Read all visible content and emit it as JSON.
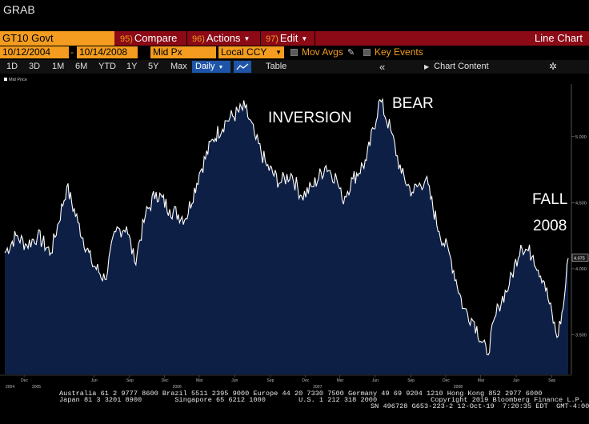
{
  "window": {
    "title": "GRAB"
  },
  "toolbar": {
    "ticker": "GT10 Govt",
    "menus": [
      {
        "num": "95)",
        "label": "Compare",
        "arrow": ""
      },
      {
        "num": "96)",
        "label": "Actions",
        "arrow": "▼"
      },
      {
        "num": "97)",
        "label": "Edit",
        "arrow": "▼"
      }
    ],
    "view_title": "Line Chart"
  },
  "settings": {
    "start_date": "10/12/2004",
    "end_date": "10/14/2008",
    "field": "Mid Px",
    "currency": "Local CCY",
    "mov_avgs_label": "Mov Avgs",
    "key_events_label": "Key Events"
  },
  "ranges": {
    "items": [
      "1D",
      "3D",
      "1M",
      "6M",
      "YTD",
      "1Y",
      "5Y",
      "Max"
    ],
    "period": "Daily",
    "table_label": "Table",
    "chart_content_label": "Chart Content"
  },
  "chart_data": {
    "type": "area",
    "legend": "Mid Price",
    "ylim": [
      3.2,
      5.35
    ],
    "y_ticks": [
      "5.000",
      "4.500",
      "4.000",
      "3.500"
    ],
    "y_tick_values": [
      5.0,
      4.5,
      4.0,
      3.5
    ],
    "last_value_label": "4.075",
    "x_minor_labels": [
      "Dec",
      "Jun",
      "Sep",
      "Dec",
      "Mar",
      "Jun",
      "Sep",
      "Dec",
      "Mar",
      "Jun",
      "Sep",
      "Dec",
      "Mar",
      "Jun",
      "Sep"
    ],
    "x_year_labels": [
      "2004",
      "2005",
      "2006",
      "2007",
      "2008"
    ],
    "x_start": "2004-10-12",
    "x_end": "2008-10-14",
    "series": [
      {
        "x": [
          "2004-10-12",
          "2004-11-10",
          "2004-12-08",
          "2005-01-05",
          "2005-02-09",
          "2005-03-22",
          "2005-04-20",
          "2005-05-25",
          "2005-06-29",
          "2005-07-27",
          "2005-08-24",
          "2005-09-14",
          "2005-10-12",
          "2005-11-09",
          "2005-12-14",
          "2006-01-25",
          "2006-03-01",
          "2006-04-05",
          "2006-05-10",
          "2006-06-28",
          "2006-07-26",
          "2006-08-23",
          "2006-09-27",
          "2006-10-25",
          "2006-11-22",
          "2006-12-20",
          "2007-01-24",
          "2007-02-21",
          "2007-03-07",
          "2007-04-04",
          "2007-05-09",
          "2007-06-13",
          "2007-07-11",
          "2007-08-08",
          "2007-09-05",
          "2007-10-10",
          "2007-11-14",
          "2007-12-12",
          "2008-01-16",
          "2008-02-13",
          "2008-03-17",
          "2008-04-16",
          "2008-05-14",
          "2008-06-13",
          "2008-07-15",
          "2008-08-13",
          "2008-09-15",
          "2008-10-01",
          "2008-10-14"
        ],
        "y": [
          4.12,
          4.25,
          4.18,
          4.25,
          4.12,
          4.62,
          4.35,
          4.05,
          3.92,
          4.28,
          4.32,
          4.05,
          4.4,
          4.58,
          4.45,
          4.38,
          4.72,
          4.98,
          5.12,
          5.22,
          4.98,
          4.78,
          4.65,
          4.72,
          4.55,
          4.62,
          4.78,
          4.68,
          4.52,
          4.68,
          4.82,
          5.28,
          5.05,
          4.72,
          4.58,
          4.68,
          4.28,
          4.1,
          3.7,
          3.6,
          3.35,
          3.72,
          3.88,
          4.18,
          4.1,
          3.9,
          3.48,
          3.7,
          4.08
        ]
      }
    ]
  },
  "annotations": [
    "INVERSION",
    "BEAR",
    "FALL",
    "2008"
  ],
  "footer": {
    "line1": "Australia 61 2 9777 8600 Brazil 5511 2395 9000 Europe 44 20 7330 7500 Germany 49 69 9204 1210 Hong Kong 852 2977 6000",
    "line2": "Japan 81 3 3201 8900        Singapore 65 6212 1000        U.S. 1 212 318 2000             Copyright 2019 Bloomberg Finance L.P.",
    "line3": "SN 496728 G653-223-2 12-Oct-19  7:20:35 EDT  GMT-4:00"
  },
  "colors": {
    "accent": "#f39c1f",
    "command_bar": "#8b0a16",
    "area_fill": "#0d1f45",
    "selected": "#1f55a8"
  },
  "icons": [
    "pencil-icon",
    "line-chart-icon",
    "double-chevron-left-icon",
    "caret-right-icon",
    "gear-icon"
  ]
}
